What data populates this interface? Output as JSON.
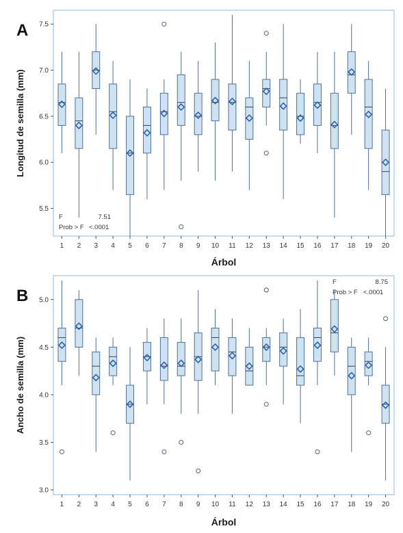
{
  "chart_data": [
    {
      "type": "box",
      "panel_label": "A",
      "xlabel": "Árbol",
      "ylabel": "Longitud de semilla  (mm)",
      "ylim": [
        5.2,
        7.65
      ],
      "yticks": [
        5.5,
        6.0,
        6.5,
        7.0,
        7.5
      ],
      "ytick_labels": [
        "5.5",
        "6.0",
        "6.5",
        "7.0",
        "7.5"
      ],
      "stats_position": "bottom-left",
      "f_label": "F",
      "f_value": "7.51",
      "prob_label": "Prob > F",
      "prob_value": "<.0001",
      "categories": [
        "1",
        "2",
        "3",
        "4",
        "5",
        "6",
        "7",
        "8",
        "9",
        "10",
        "11",
        "12",
        "13",
        "14",
        "15",
        "16",
        "17",
        "18",
        "19",
        "20"
      ],
      "boxes": [
        {
          "min": 6.1,
          "q1": 6.4,
          "median": 6.65,
          "q3": 6.85,
          "max": 7.2,
          "mean": 6.63,
          "outliers": []
        },
        {
          "min": 5.4,
          "q1": 6.15,
          "median": 6.45,
          "q3": 6.7,
          "max": 7.2,
          "mean": 6.4,
          "outliers": []
        },
        {
          "min": 6.3,
          "q1": 6.8,
          "median": 7.0,
          "q3": 7.2,
          "max": 7.5,
          "mean": 6.99,
          "outliers": []
        },
        {
          "min": 5.7,
          "q1": 6.15,
          "median": 6.55,
          "q3": 6.85,
          "max": 7.1,
          "mean": 6.51,
          "outliers": []
        },
        {
          "min": 5.2,
          "q1": 5.65,
          "median": 6.1,
          "q3": 6.5,
          "max": 6.9,
          "mean": 6.1,
          "outliers": []
        },
        {
          "min": 5.6,
          "q1": 6.1,
          "median": 6.4,
          "q3": 6.6,
          "max": 6.8,
          "mean": 6.32,
          "outliers": []
        },
        {
          "min": 5.7,
          "q1": 6.3,
          "median": 6.55,
          "q3": 6.75,
          "max": 6.9,
          "mean": 6.53,
          "outliers": [
            7.5
          ]
        },
        {
          "min": 5.8,
          "q1": 6.4,
          "median": 6.65,
          "q3": 6.95,
          "max": 7.2,
          "mean": 6.6,
          "outliers": [
            5.3
          ]
        },
        {
          "min": 5.9,
          "q1": 6.3,
          "median": 6.5,
          "q3": 6.75,
          "max": 7.1,
          "mean": 6.51,
          "outliers": []
        },
        {
          "min": 5.8,
          "q1": 6.45,
          "median": 6.65,
          "q3": 6.9,
          "max": 7.3,
          "mean": 6.67,
          "outliers": []
        },
        {
          "min": 5.9,
          "q1": 6.35,
          "median": 6.65,
          "q3": 6.85,
          "max": 7.6,
          "mean": 6.66,
          "outliers": []
        },
        {
          "min": 5.7,
          "q1": 6.25,
          "median": 6.6,
          "q3": 6.7,
          "max": 7.1,
          "mean": 6.48,
          "outliers": []
        },
        {
          "min": 6.4,
          "q1": 6.6,
          "median": 6.8,
          "q3": 6.9,
          "max": 7.2,
          "mean": 6.77,
          "outliers": [
            6.1,
            7.4
          ]
        },
        {
          "min": 5.6,
          "q1": 6.35,
          "median": 6.7,
          "q3": 6.9,
          "max": 7.5,
          "mean": 6.61,
          "outliers": []
        },
        {
          "min": 6.2,
          "q1": 6.3,
          "median": 6.5,
          "q3": 6.75,
          "max": 6.9,
          "mean": 6.48,
          "outliers": []
        },
        {
          "min": 6.1,
          "q1": 6.4,
          "median": 6.65,
          "q3": 6.85,
          "max": 7.2,
          "mean": 6.62,
          "outliers": []
        },
        {
          "min": 5.4,
          "q1": 6.15,
          "median": 6.4,
          "q3": 6.75,
          "max": 7.2,
          "mean": 6.41,
          "outliers": []
        },
        {
          "min": 6.3,
          "q1": 6.75,
          "median": 6.95,
          "q3": 7.2,
          "max": 7.5,
          "mean": 6.98,
          "outliers": []
        },
        {
          "min": 5.7,
          "q1": 6.15,
          "median": 6.6,
          "q3": 6.9,
          "max": 7.1,
          "mean": 6.52,
          "outliers": []
        },
        {
          "min": 5.2,
          "q1": 5.65,
          "median": 5.9,
          "q3": 6.35,
          "max": 6.8,
          "mean": 6.0,
          "outliers": []
        }
      ]
    },
    {
      "type": "box",
      "panel_label": "B",
      "xlabel": "Árbol",
      "ylabel": "Ancho de semilla  (mm)",
      "ylim": [
        2.95,
        5.25
      ],
      "yticks": [
        3.0,
        3.5,
        4.0,
        4.5,
        5.0
      ],
      "ytick_labels": [
        "3.0",
        "3.5",
        "4.0",
        "4.5",
        "5.0"
      ],
      "stats_position": "top-right",
      "f_label": "F",
      "f_value": "8.75",
      "prob_label": "Prob > F",
      "prob_value": "<.0001",
      "categories": [
        "1",
        "2",
        "3",
        "4",
        "5",
        "6",
        "7",
        "8",
        "9",
        "10",
        "11",
        "12",
        "13",
        "14",
        "15",
        "16",
        "17",
        "18",
        "19",
        "20"
      ],
      "boxes": [
        {
          "min": 4.1,
          "q1": 4.35,
          "median": 4.6,
          "q3": 4.7,
          "max": 5.2,
          "mean": 4.52,
          "outliers": [
            3.4
          ]
        },
        {
          "min": 4.2,
          "q1": 4.5,
          "median": 4.7,
          "q3": 5.0,
          "max": 5.1,
          "mean": 4.72,
          "outliers": []
        },
        {
          "min": 3.4,
          "q1": 4.0,
          "median": 4.3,
          "q3": 4.45,
          "max": 4.6,
          "mean": 4.18,
          "outliers": []
        },
        {
          "min": 4.1,
          "q1": 4.2,
          "median": 4.4,
          "q3": 4.5,
          "max": 4.6,
          "mean": 4.33,
          "outliers": [
            3.6
          ]
        },
        {
          "min": 3.1,
          "q1": 3.7,
          "median": 3.9,
          "q3": 4.1,
          "max": 4.5,
          "mean": 3.9,
          "outliers": []
        },
        {
          "min": 3.9,
          "q1": 4.25,
          "median": 4.4,
          "q3": 4.55,
          "max": 4.7,
          "mean": 4.39,
          "outliers": []
        },
        {
          "min": 3.9,
          "q1": 4.15,
          "median": 4.3,
          "q3": 4.6,
          "max": 4.8,
          "mean": 4.31,
          "outliers": [
            3.4
          ]
        },
        {
          "min": 3.8,
          "q1": 4.2,
          "median": 4.3,
          "q3": 4.55,
          "max": 4.8,
          "mean": 4.33,
          "outliers": [
            3.5
          ]
        },
        {
          "min": 3.8,
          "q1": 4.15,
          "median": 4.4,
          "q3": 4.65,
          "max": 5.1,
          "mean": 4.37,
          "outliers": [
            3.2
          ]
        },
        {
          "min": 4.1,
          "q1": 4.25,
          "median": 4.6,
          "q3": 4.7,
          "max": 4.9,
          "mean": 4.5,
          "outliers": []
        },
        {
          "min": 3.8,
          "q1": 4.2,
          "median": 4.45,
          "q3": 4.6,
          "max": 4.8,
          "mean": 4.41,
          "outliers": []
        },
        {
          "min": 4.1,
          "q1": 4.1,
          "median": 4.25,
          "q3": 4.5,
          "max": 4.7,
          "mean": 4.3,
          "outliers": []
        },
        {
          "min": 4.1,
          "q1": 4.35,
          "median": 4.5,
          "q3": 4.6,
          "max": 4.7,
          "mean": 4.5,
          "outliers": [
            3.9,
            5.1,
            5.1
          ]
        },
        {
          "min": 3.9,
          "q1": 4.3,
          "median": 4.5,
          "q3": 4.65,
          "max": 4.8,
          "mean": 4.46,
          "outliers": []
        },
        {
          "min": 3.7,
          "q1": 4.1,
          "median": 4.2,
          "q3": 4.6,
          "max": 4.9,
          "mean": 4.27,
          "outliers": []
        },
        {
          "min": 4.1,
          "q1": 4.35,
          "median": 4.6,
          "q3": 4.7,
          "max": 5.2,
          "mean": 4.52,
          "outliers": [
            3.4
          ]
        },
        {
          "min": 4.2,
          "q1": 4.45,
          "median": 4.65,
          "q3": 5.0,
          "max": 5.1,
          "mean": 4.69,
          "outliers": []
        },
        {
          "min": 3.4,
          "q1": 4.0,
          "median": 4.3,
          "q3": 4.5,
          "max": 4.6,
          "mean": 4.2,
          "outliers": []
        },
        {
          "min": 4.1,
          "q1": 4.2,
          "median": 4.35,
          "q3": 4.45,
          "max": 4.6,
          "mean": 4.31,
          "outliers": [
            3.6
          ]
        },
        {
          "min": 3.1,
          "q1": 3.7,
          "median": 3.9,
          "q3": 4.1,
          "max": 4.5,
          "mean": 3.89,
          "outliers": [
            4.8
          ]
        }
      ]
    }
  ],
  "colors": {
    "frame": "#8ab8d8",
    "box_fill": "#cfe2f2",
    "box_stroke": "#4f6f98",
    "whisker": "#4f6f98",
    "median": "#3a3f4a",
    "mean_marker": "#2f63a8",
    "outlier": "#55607a"
  }
}
